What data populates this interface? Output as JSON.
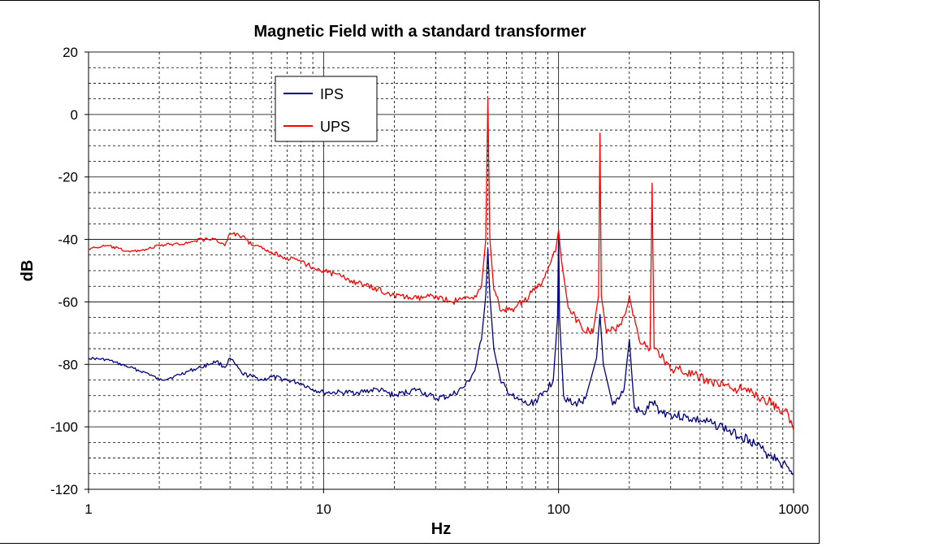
{
  "chart_data": {
    "type": "line",
    "title": "Magnetic Field with a standard transformer",
    "xlabel": "Hz",
    "ylabel": "dB",
    "x_scale": "log",
    "xlim": [
      1,
      1000
    ],
    "ylim": [
      -120,
      20
    ],
    "x_ticks": [
      "1",
      "10",
      "100",
      "1000"
    ],
    "y_ticks": [
      "20",
      "0",
      "-20",
      "-40",
      "-60",
      "-80",
      "-100",
      "-120"
    ],
    "grid": true,
    "legend_position": "top-left",
    "series": [
      {
        "name": "IPS",
        "color": "#000080",
        "x": [
          1,
          1.2,
          1.5,
          1.8,
          2,
          2.3,
          2.7,
          3,
          3.5,
          3.8,
          4,
          4.5,
          5,
          5.5,
          6,
          7,
          8,
          9,
          10,
          12,
          14,
          17,
          20,
          25,
          30,
          35,
          40,
          44,
          47,
          49,
          50,
          51,
          53,
          57,
          65,
          75,
          85,
          95,
          99,
          100,
          101,
          105,
          115,
          130,
          145,
          150,
          155,
          170,
          190,
          200,
          210,
          230,
          250,
          270,
          300,
          350,
          400,
          450,
          500,
          550,
          600,
          650,
          700,
          750,
          800,
          850,
          900,
          950,
          1000
        ],
        "y": [
          -78,
          -78.5,
          -81,
          -83,
          -85,
          -84,
          -82,
          -81,
          -79,
          -81,
          -78,
          -83,
          -84,
          -85,
          -84,
          -85,
          -86,
          -88,
          -89,
          -89,
          -89,
          -88,
          -90,
          -88,
          -91,
          -90,
          -87,
          -82,
          -72,
          -58,
          -43,
          -58,
          -75,
          -86,
          -91,
          -93,
          -90,
          -85,
          -65,
          -38,
          -65,
          -90,
          -93,
          -91,
          -78,
          -64,
          -80,
          -93,
          -88,
          -72,
          -94,
          -96,
          -92,
          -95,
          -96,
          -97,
          -98,
          -99,
          -100,
          -102,
          -103,
          -104,
          -106,
          -108,
          -109,
          -110,
          -112,
          -113,
          -115
        ]
      },
      {
        "name": "UPS",
        "color": "#ff0000",
        "x": [
          1,
          1.2,
          1.5,
          1.8,
          2,
          2.3,
          2.7,
          3,
          3.5,
          3.8,
          4,
          4.5,
          5,
          5.5,
          6,
          7,
          8,
          9,
          10,
          12,
          14,
          17,
          20,
          25,
          30,
          35,
          40,
          44,
          47,
          49,
          50,
          51,
          53,
          57,
          65,
          75,
          85,
          92,
          97,
          100,
          103,
          110,
          125,
          140,
          148,
          150,
          152,
          160,
          180,
          195,
          200,
          205,
          220,
          245,
          250,
          255,
          280,
          300,
          320,
          350,
          400,
          450,
          500,
          550,
          600,
          650,
          700,
          750,
          800,
          850,
          900,
          950,
          1000
        ],
        "y": [
          -43,
          -42,
          -44,
          -43,
          -42,
          -41.5,
          -41,
          -40,
          -40,
          -42,
          -38,
          -39,
          -42,
          -43,
          -44,
          -46,
          -47,
          -49,
          -50,
          -52,
          -54,
          -56,
          -58,
          -59,
          -58,
          -60,
          -59,
          -58,
          -55,
          -40,
          5,
          -40,
          -56,
          -63,
          -62,
          -58,
          -54,
          -48,
          -44,
          -37,
          -47,
          -62,
          -68,
          -70,
          -58,
          -6,
          -58,
          -70,
          -68,
          -62,
          -58,
          -62,
          -72,
          -75,
          -22,
          -75,
          -78,
          -82,
          -81,
          -83,
          -84,
          -86,
          -86,
          -88,
          -88,
          -89,
          -90,
          -91,
          -92,
          -94,
          -95,
          -96,
          -101
        ]
      }
    ]
  }
}
